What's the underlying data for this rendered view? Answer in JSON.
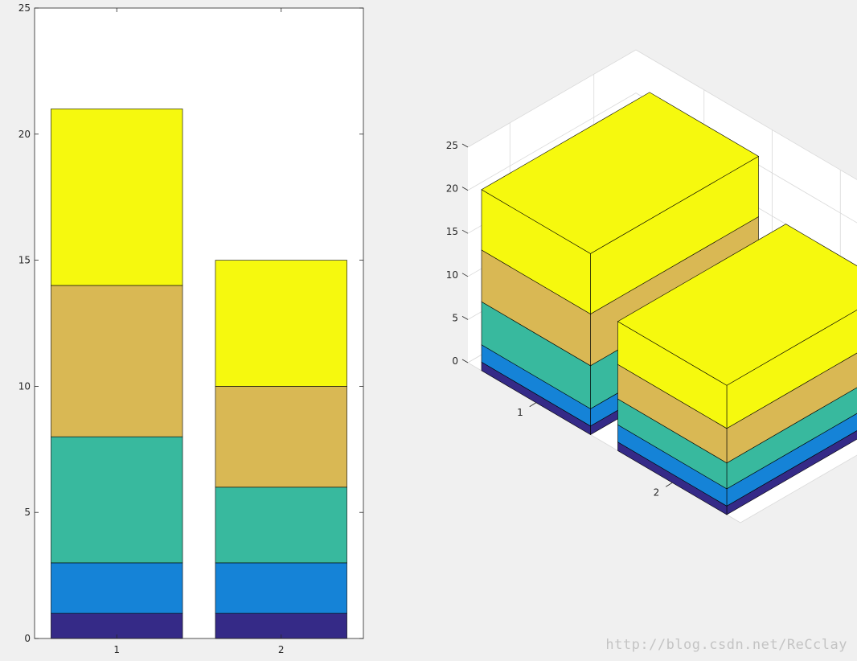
{
  "chart_data": [
    {
      "type": "bar",
      "stacked": true,
      "view": "2d",
      "categories": [
        "1",
        "2"
      ],
      "ylim": [
        0,
        25
      ],
      "yticks": [
        "0",
        "5",
        "10",
        "15",
        "20",
        "25"
      ],
      "grid": false,
      "series": [
        {
          "values": [
            1,
            1
          ],
          "color": "#352a87"
        },
        {
          "values": [
            2,
            2
          ],
          "color": "#1583d7"
        },
        {
          "values": [
            5,
            3
          ],
          "color": "#38b99e"
        },
        {
          "values": [
            6,
            4
          ],
          "color": "#d9b854"
        },
        {
          "values": [
            7,
            5
          ],
          "color": "#f6f90e"
        }
      ]
    },
    {
      "type": "bar",
      "stacked": true,
      "view": "3d",
      "categories": [
        "1",
        "2"
      ],
      "zlim": [
        0,
        25
      ],
      "zticks": [
        "0",
        "5",
        "10",
        "15",
        "20",
        "25"
      ],
      "grid": true,
      "series": [
        {
          "values": [
            1,
            1
          ],
          "color": "#352a87"
        },
        {
          "values": [
            2,
            2
          ],
          "color": "#1583d7"
        },
        {
          "values": [
            5,
            3
          ],
          "color": "#38b99e"
        },
        {
          "values": [
            6,
            4
          ],
          "color": "#d9b854"
        },
        {
          "values": [
            7,
            5
          ],
          "color": "#f6f90e"
        }
      ]
    }
  ],
  "watermark": "http://blog.csdn.net/ReCclay"
}
